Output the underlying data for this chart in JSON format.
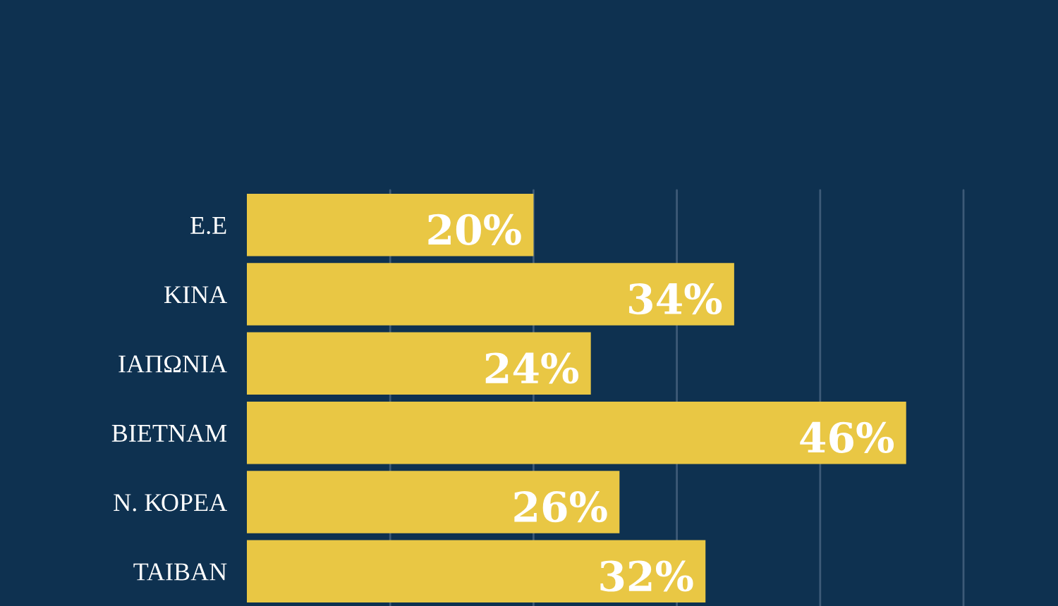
{
  "chart_data": {
    "type": "bar",
    "orientation": "horizontal",
    "categories": [
      "Ε.Ε",
      "ΚΙΝΑ",
      "ΙΑΠΩΝΙΑ",
      "ΒΙΕΤΝΑΜ",
      "Ν. ΚΟΡΕΑ",
      "ΤΑΙΒΑΝ"
    ],
    "values": [
      20,
      34,
      24,
      46,
      26,
      32
    ],
    "value_labels": [
      "20%",
      "34%",
      "24%",
      "46%",
      "26%",
      "32%"
    ],
    "color": "#e9c744",
    "xlim": [
      0,
      50
    ],
    "xticks": [
      {
        "value": 10,
        "label": null
      },
      {
        "value": 20,
        "label": null
      },
      {
        "value": 30,
        "label": null
      },
      {
        "value": 40,
        "label": null
      },
      {
        "value": 50,
        "label": null
      }
    ],
    "grid": "x",
    "tick_labels": "y"
  }
}
